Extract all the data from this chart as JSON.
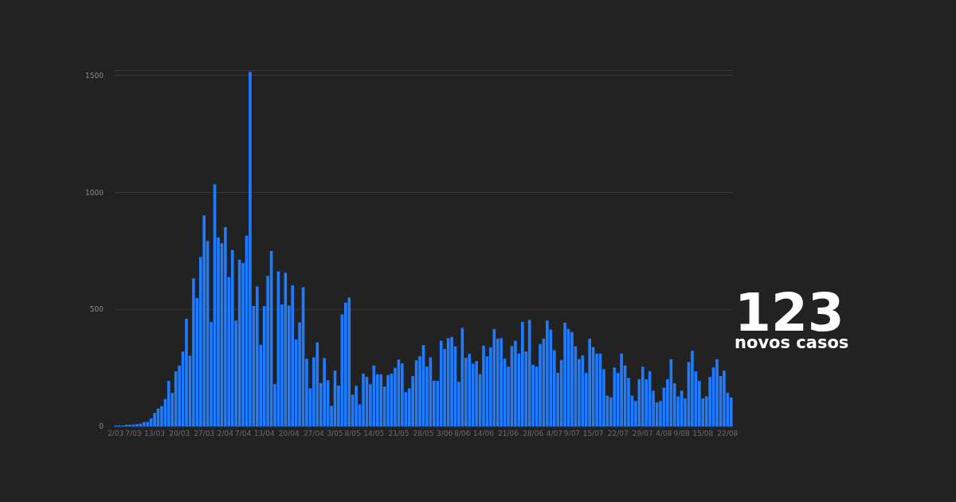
{
  "chart_data": {
    "type": "bar",
    "color": "#1f7bff",
    "ylim": [
      0,
      1520
    ],
    "yticks": [
      0,
      500,
      1000,
      1500
    ],
    "grid": "y",
    "categories": [
      "2/03",
      null,
      null,
      null,
      null,
      "7/03",
      null,
      null,
      null,
      null,
      null,
      "13/03",
      null,
      null,
      null,
      null,
      null,
      null,
      "20/03",
      null,
      null,
      null,
      null,
      null,
      null,
      "27/03",
      null,
      null,
      null,
      null,
      null,
      "2/04",
      null,
      null,
      null,
      null,
      "7/04",
      null,
      null,
      null,
      null,
      null,
      "13/04",
      null,
      null,
      null,
      null,
      null,
      null,
      "20/04",
      null,
      null,
      null,
      null,
      null,
      null,
      "27/04",
      null,
      null,
      null,
      null,
      null,
      "3/05",
      null,
      null,
      null,
      null,
      "8/05",
      null,
      null,
      null,
      null,
      null,
      "14/05",
      null,
      null,
      null,
      null,
      null,
      null,
      "21/05",
      null,
      null,
      null,
      null,
      null,
      null,
      "28/05",
      null,
      null,
      null,
      null,
      null,
      "3/06",
      null,
      null,
      null,
      null,
      "8/06",
      null,
      null,
      null,
      null,
      null,
      "14/06",
      null,
      null,
      null,
      null,
      null,
      null,
      "21/06",
      null,
      null,
      null,
      null,
      null,
      null,
      "28/06",
      null,
      null,
      null,
      null,
      null,
      "4/07",
      null,
      null,
      null,
      null,
      "9/07",
      null,
      null,
      null,
      null,
      null,
      "15/07",
      null,
      null,
      null,
      null,
      null,
      null,
      "22/07",
      null,
      null,
      null,
      null,
      null,
      null,
      "29/07",
      null,
      null,
      null,
      null,
      null,
      "4/08",
      null,
      null,
      null,
      null,
      "9/08",
      null,
      null,
      null,
      null,
      null,
      "15/08",
      null,
      null,
      null,
      null,
      null,
      null,
      "22/08",
      null
    ],
    "values": [
      2,
      2,
      1,
      4,
      4,
      8,
      9,
      11,
      18,
      19,
      34,
      57,
      76,
      86,
      117,
      194,
      143,
      235,
      260,
      320,
      460,
      302,
      633,
      549,
      724,
      902,
      792,
      446,
      1035,
      808,
      783,
      852,
      638,
      754,
      452,
      712,
      699,
      815,
      1516,
      515,
      598,
      349,
      514,
      643,
      750,
      181,
      663,
      521,
      657,
      516,
      603,
      371,
      444,
      595,
      289,
      162,
      295,
      359,
      185,
      292,
      197,
      88,
      238,
      174,
      478,
      529,
      550,
      135,
      173,
      94,
      225,
      212,
      180,
      260,
      222,
      222,
      170,
      219,
      225,
      250,
      286,
      269,
      147,
      162,
      215,
      283,
      300,
      347,
      255,
      295,
      195,
      194,
      366,
      331,
      377,
      382,
      342,
      190,
      421,
      293,
      310,
      268,
      279,
      223,
      345,
      299,
      337,
      416,
      375,
      377,
      289,
      255,
      343,
      366,
      311,
      447,
      320,
      455,
      263,
      255,
      352,
      375,
      452,
      414,
      325,
      229,
      284,
      443,
      416,
      403,
      342,
      288,
      303,
      229,
      375,
      339,
      311,
      311,
      244,
      131,
      124,
      252,
      229,
      311,
      260,
      207,
      131,
      108,
      201,
      255,
      201,
      235,
      152,
      102,
      108,
      165,
      201,
      287,
      184,
      128,
      152,
      119,
      275,
      323,
      235,
      194,
      119,
      128,
      211,
      252,
      287,
      215,
      238,
      143,
      123
    ],
    "annotations": [
      "123",
      "novos casos"
    ]
  }
}
